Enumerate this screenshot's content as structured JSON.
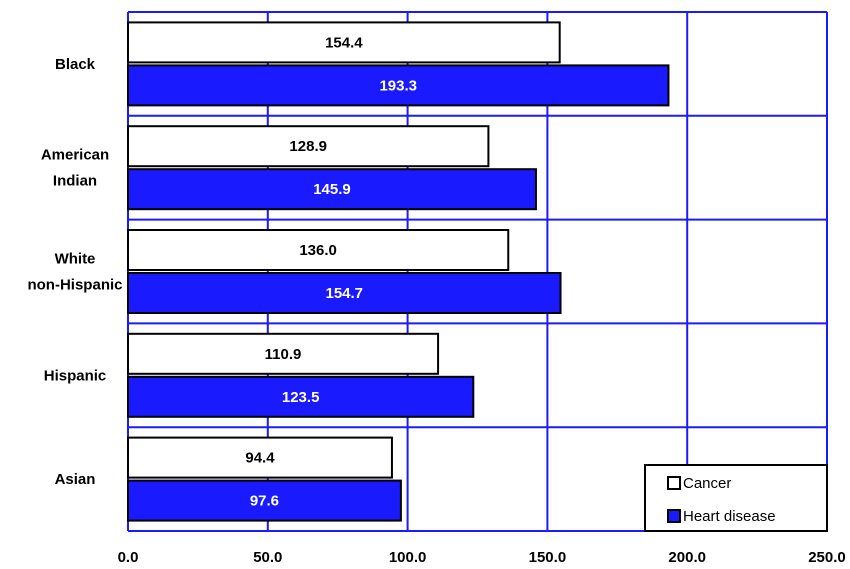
{
  "chart_data": {
    "type": "bar",
    "orientation": "horizontal",
    "categories": [
      "Black",
      "American Indian",
      "White non-Hispanic",
      "Hispanic",
      "Asian"
    ],
    "category_label_lines": [
      [
        "Black"
      ],
      [
        "American",
        "Indian"
      ],
      [
        "White",
        "non-Hispanic"
      ],
      [
        "Hispanic"
      ],
      [
        "Asian"
      ]
    ],
    "series": [
      {
        "name": "Cancer",
        "values": [
          154.4,
          128.9,
          136.0,
          110.9,
          94.4
        ],
        "color": "#ffffff"
      },
      {
        "name": "Heart disease",
        "values": [
          193.3,
          145.9,
          154.7,
          123.5,
          97.6
        ],
        "color": "#1a1aff"
      }
    ],
    "data_labels": [
      [
        "154.4",
        "128.9",
        "136.0",
        "110.9",
        "94.4"
      ],
      [
        "193.3",
        "145.9",
        "154.7",
        "123.5",
        "97.6"
      ]
    ],
    "xlim": [
      0,
      250
    ],
    "x_ticks": [
      0,
      50,
      100,
      150,
      200,
      250
    ],
    "x_tick_labels": [
      "0.0",
      "50.0",
      "100.0",
      "150.0",
      "200.0",
      "250.0"
    ],
    "grid": true,
    "grid_color": "#1a1aff",
    "legend_position": "bottom-right",
    "title": "",
    "xlabel": "",
    "ylabel": ""
  }
}
